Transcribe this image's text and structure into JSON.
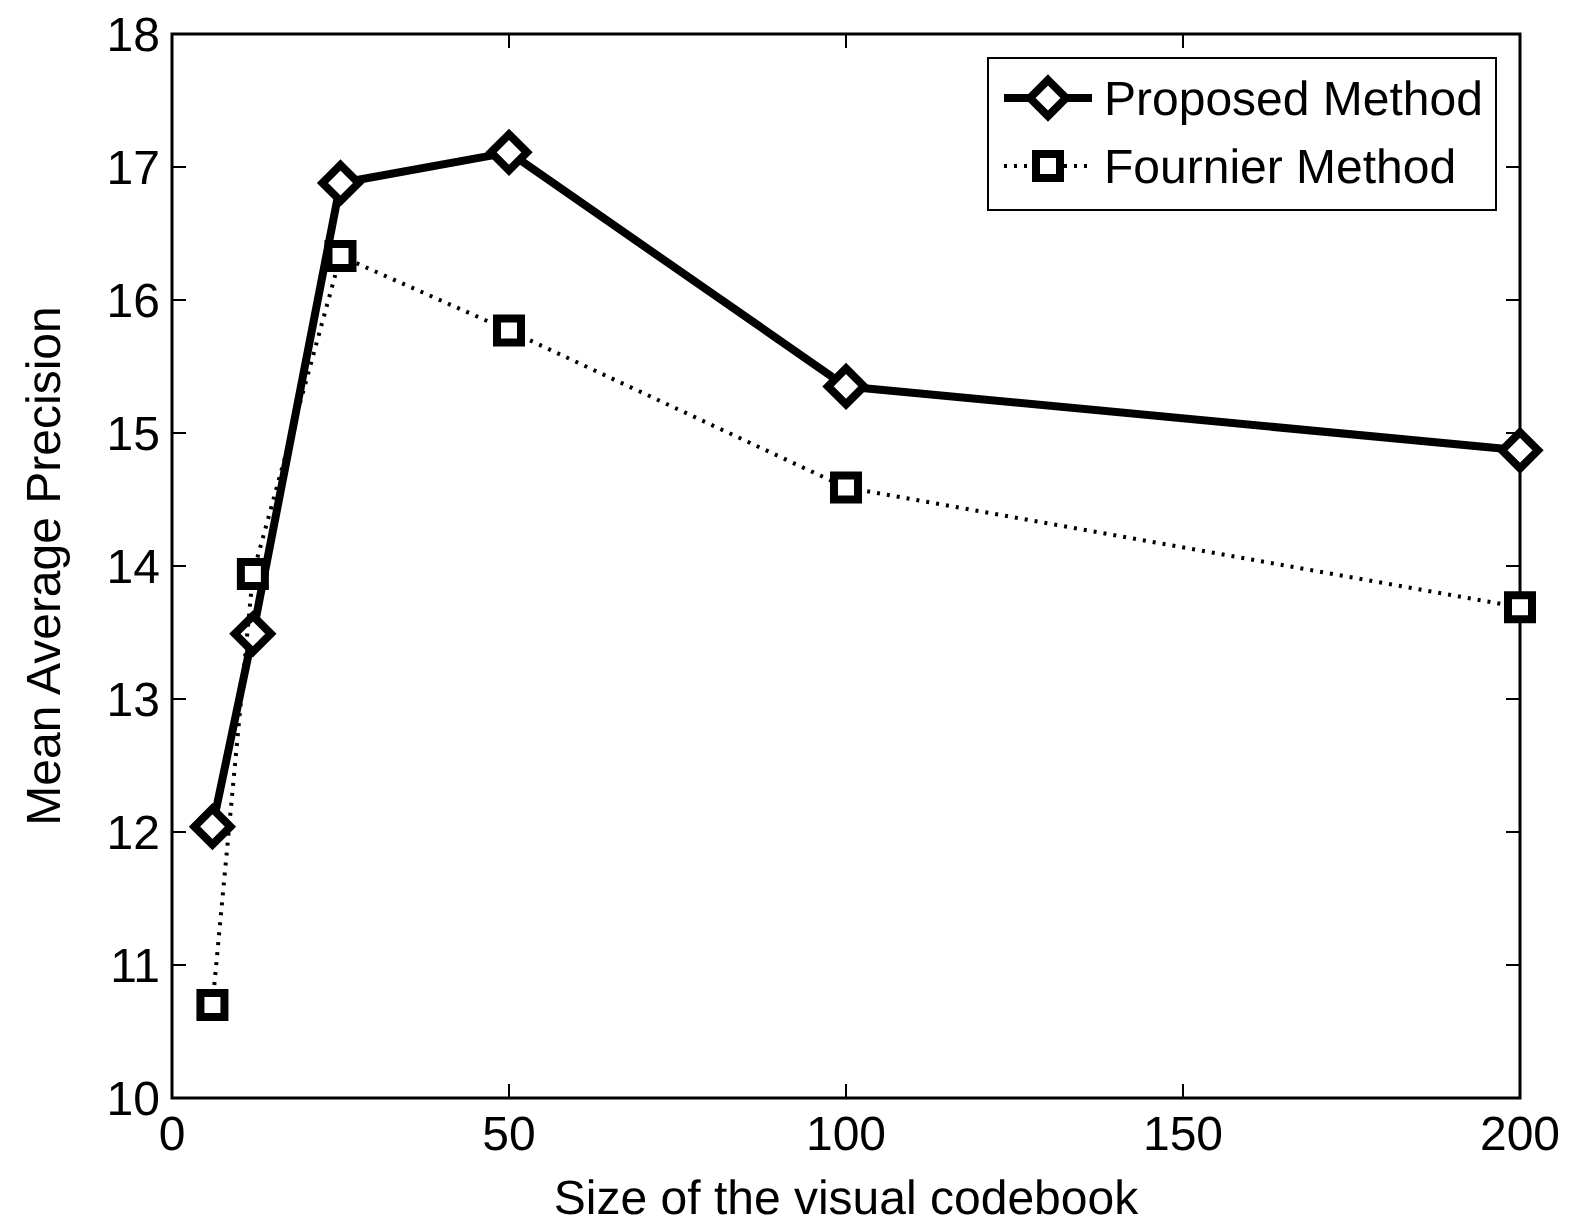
{
  "chart_data": {
    "type": "line",
    "xlabel": "Size of the visual codebook",
    "ylabel": "Mean Average Precision",
    "x": [
      6,
      12,
      25,
      50,
      100,
      200
    ],
    "xlim": [
      0,
      200
    ],
    "xticks": [
      0,
      50,
      100,
      150,
      200
    ],
    "ylim": [
      10,
      18
    ],
    "yticks": [
      10,
      11,
      12,
      13,
      14,
      15,
      16,
      17,
      18
    ],
    "grid": false,
    "legend": "top right",
    "series": [
      {
        "name": "Proposed Method",
        "color": "#000000",
        "marker": "diamond",
        "line_style": "solid",
        "values": [
          12.04,
          13.49,
          16.88,
          17.11,
          15.35,
          14.87
        ]
      },
      {
        "name": "Fournier Method",
        "color": "#000000",
        "marker": "square",
        "line_style": "dotted",
        "values": [
          10.7,
          13.94,
          16.33,
          15.77,
          14.59,
          13.69
        ]
      }
    ]
  }
}
